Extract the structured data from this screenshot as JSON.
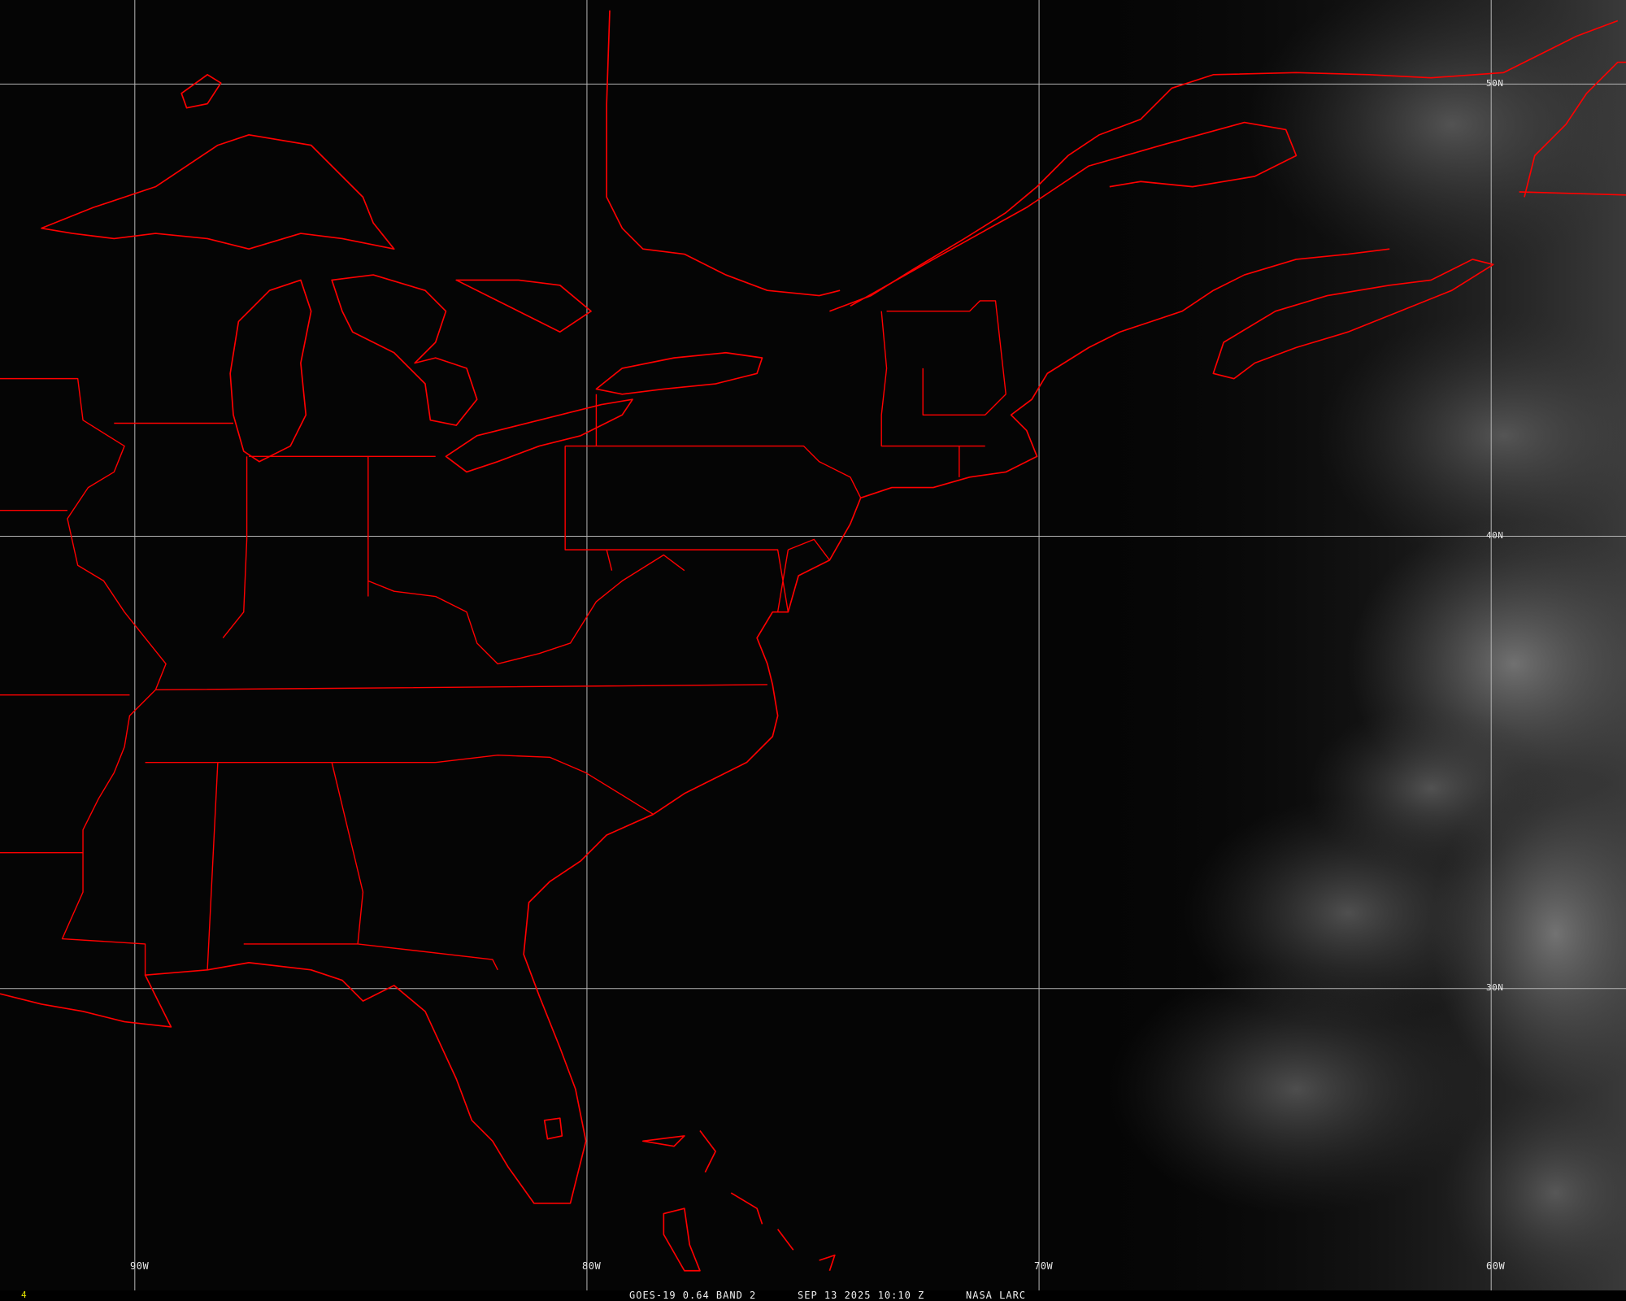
{
  "caption": {
    "satellite": "GOES-19 0.64 BAND 2",
    "datetime": "SEP 13 2025 10:10 Z",
    "source": "NASA LARC"
  },
  "frame_number": "4",
  "grid": {
    "longitudes": [
      "90W",
      "80W",
      "70W",
      "60W"
    ],
    "latitudes": [
      "50N",
      "40N",
      "30N"
    ]
  },
  "colors": {
    "boundaries": "#ff0000",
    "gridlines": "#b4b4b4",
    "background": "#050505",
    "frame_number": "#e8e800"
  }
}
